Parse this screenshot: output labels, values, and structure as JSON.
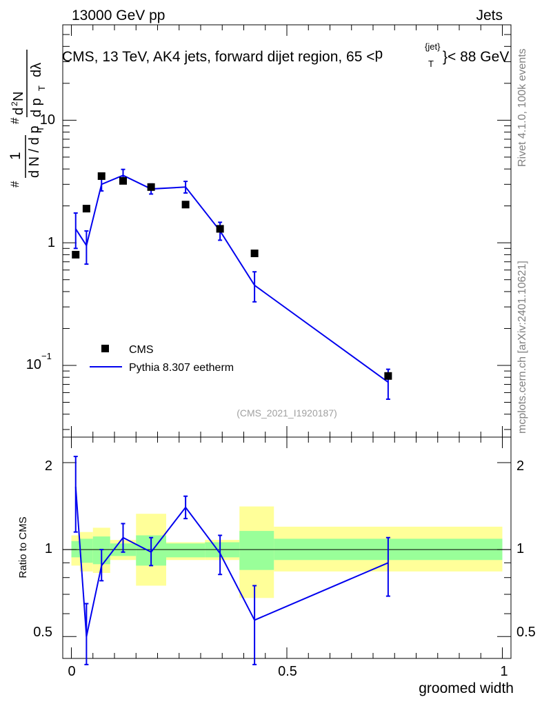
{
  "header": {
    "left": "13000 GeV pp",
    "right": "Jets",
    "side_top": "Rivet 4.1.0,  100k events",
    "side_bottom": "mcplots.cern.ch [arXiv:2401.10621]"
  },
  "colors": {
    "mc": "#0000ee",
    "data": "#000000",
    "band_inner": "#99ff99",
    "band_outer": "#ffff99"
  },
  "chart_data": [
    {
      "type": "scatter",
      "name": "main-panel",
      "title": "CMS, 13 TeV, AK4 jets, forward dijet region, 65 < p_T^{jet} < 88 GeV",
      "title_parts": {
        "prefix": "CMS, 13 TeV, AK4 jets, forward dijet region, 65 <",
        "p": "p",
        "sup": "{jet}",
        "sub": "T",
        "suffix": "}< 88 GeV"
      },
      "ylabel": "1/(dN/dp_T) d²N/(dp_T dλ)",
      "ylabel_parts": {
        "hash": "#",
        "one": "1",
        "den": "d N / d p",
        "t": "T",
        "num": "d",
        "two": "2",
        "n": "N",
        "rden": "d p",
        "lam": "dλ"
      },
      "ylim": [
        0.026,
        60
      ],
      "yscale": "log",
      "ytick_labels": [
        "10",
        "1",
        "10",
        "−1"
      ],
      "ytick_values": [
        10,
        1,
        0.1
      ],
      "watermark": "(CMS_2021_I1920187)",
      "legend": [
        {
          "label": "CMS"
        },
        {
          "label": "Pythia 8.307 eetherm"
        }
      ],
      "series": [
        {
          "name": "CMS",
          "x": [
            0.01,
            0.035,
            0.07,
            0.12,
            0.185,
            0.265,
            0.345,
            0.425,
            0.735
          ],
          "y": [
            0.8,
            1.9,
            3.5,
            3.2,
            2.85,
            2.05,
            1.3,
            0.82,
            0.082
          ]
        },
        {
          "name": "Pythia 8.307 eetherm",
          "x": [
            0.01,
            0.035,
            0.07,
            0.12,
            0.185,
            0.265,
            0.345,
            0.425,
            0.735
          ],
          "y": [
            1.3,
            0.95,
            3.0,
            3.55,
            2.75,
            2.85,
            1.25,
            0.45,
            0.073
          ],
          "yerr_low": [
            0.4,
            0.28,
            0.35,
            0.4,
            0.25,
            0.3,
            0.2,
            0.12,
            0.02
          ],
          "yerr_high": [
            0.45,
            0.3,
            0.38,
            0.42,
            0.27,
            0.32,
            0.22,
            0.13,
            0.02
          ]
        }
      ]
    },
    {
      "type": "line",
      "name": "ratio-panel",
      "ylabel": "Ratio to CMS",
      "xlabel": "groomed width",
      "xlim": [
        -0.02,
        1.02
      ],
      "ylim": [
        0.42,
        2.45
      ],
      "yscale": "log",
      "ytick_labels": [
        "2",
        "1",
        "0.5"
      ],
      "ytick_values": [
        2,
        1,
        0.5
      ],
      "xtick_labels": [
        "0",
        "0.5",
        "1"
      ],
      "xtick_values": [
        0,
        0.5,
        1
      ],
      "bins": [
        {
          "lo": 0.0,
          "hi": 0.02,
          "inner": [
            0.94,
            1.07
          ],
          "outer": [
            0.88,
            1.12
          ]
        },
        {
          "lo": 0.02,
          "hi": 0.05,
          "inner": [
            0.9,
            1.09
          ],
          "outer": [
            0.84,
            1.15
          ]
        },
        {
          "lo": 0.05,
          "hi": 0.09,
          "inner": [
            0.89,
            1.11
          ],
          "outer": [
            0.83,
            1.19
          ]
        },
        {
          "lo": 0.09,
          "hi": 0.15,
          "inner": [
            0.95,
            1.05
          ],
          "outer": [
            0.92,
            1.08
          ]
        },
        {
          "lo": 0.15,
          "hi": 0.22,
          "inner": [
            0.88,
            1.12
          ],
          "outer": [
            0.75,
            1.33
          ]
        },
        {
          "lo": 0.22,
          "hi": 0.31,
          "inner": [
            0.94,
            1.05
          ],
          "outer": [
            0.92,
            1.06
          ]
        },
        {
          "lo": 0.31,
          "hi": 0.39,
          "inner": [
            0.94,
            1.06
          ],
          "outer": [
            0.92,
            1.08
          ]
        },
        {
          "lo": 0.39,
          "hi": 0.47,
          "inner": [
            0.85,
            1.16
          ],
          "outer": [
            0.68,
            1.41
          ]
        },
        {
          "lo": 0.47,
          "hi": 1.0,
          "inner": [
            0.92,
            1.09
          ],
          "outer": [
            0.84,
            1.2
          ]
        }
      ],
      "series": [
        {
          "name": "Pythia 8.307 eetherm",
          "x": [
            0.01,
            0.035,
            0.07,
            0.12,
            0.185,
            0.265,
            0.345,
            0.425,
            0.735
          ],
          "y": [
            1.65,
            0.5,
            0.88,
            1.1,
            0.98,
            1.4,
            0.97,
            0.57,
            0.9
          ],
          "yerr_low": [
            0.5,
            0.1,
            0.1,
            0.12,
            0.1,
            0.12,
            0.15,
            0.17,
            0.21
          ],
          "yerr_high": [
            0.45,
            0.15,
            0.12,
            0.13,
            0.12,
            0.13,
            0.15,
            0.18,
            0.2
          ]
        }
      ]
    }
  ]
}
